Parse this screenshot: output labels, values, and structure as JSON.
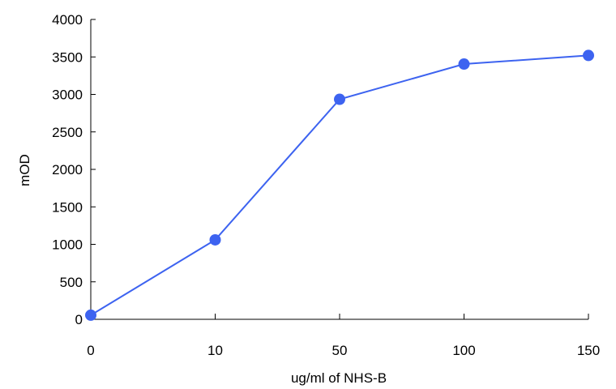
{
  "chart_data": {
    "type": "line",
    "categories": [
      "0",
      "10",
      "50",
      "100",
      "150"
    ],
    "series": [
      {
        "values": [
          55,
          1060,
          2935,
          3405,
          3520
        ]
      }
    ],
    "title": "",
    "xlabel": "ug/ml of NHS-B",
    "ylabel": "mOD",
    "ylim": [
      0,
      4000
    ],
    "yticks": [
      0,
      500,
      1000,
      1500,
      2000,
      2500,
      3000,
      3500,
      4000
    ],
    "grid": false,
    "legend": "none",
    "colors": {
      "series": "#3d63f0",
      "axis": "#000000"
    }
  }
}
